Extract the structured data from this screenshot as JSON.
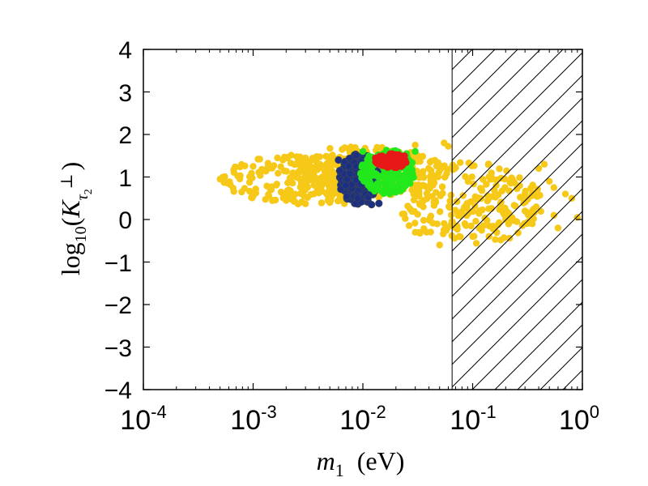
{
  "chart_data": {
    "type": "scatter",
    "title": "",
    "xlabel": "m_1 (eV)",
    "xlabel_main": "m",
    "xlabel_sub": "1",
    "xlabel_unit": "(eV)",
    "ylabel": "log10(K_{τ2⊥})",
    "ylabel_fn": "log",
    "ylabel_fn_sub": "10",
    "ylabel_var": "K",
    "ylabel_var_sub": "τ",
    "ylabel_var_subsub": "2",
    "ylabel_var_sup": "⊥",
    "xscale": "log",
    "xlim": [
      0.0001,
      1
    ],
    "ylim": [
      -4,
      4
    ],
    "x_ticks": [
      {
        "base": "10",
        "exp": "-4",
        "value": 0.0001
      },
      {
        "base": "10",
        "exp": "-3",
        "value": 0.001
      },
      {
        "base": "10",
        "exp": "-2",
        "value": 0.01
      },
      {
        "base": "10",
        "exp": "-1",
        "value": 0.1
      },
      {
        "base": "10",
        "exp": "0",
        "value": 1
      }
    ],
    "y_ticks": [
      "4",
      "3",
      "2",
      "1",
      "0",
      "−1",
      "−2",
      "−3",
      "−4"
    ],
    "y_tick_values": [
      4,
      3,
      2,
      1,
      0,
      -1,
      -2,
      -3,
      -4
    ],
    "excluded_region": {
      "x_min": 0.065,
      "x_max": 1,
      "style": "hatched"
    },
    "series": [
      {
        "name": "yellow",
        "color": "#f6c818",
        "regions": [
          {
            "x": [
              0.0005,
              0.03
            ],
            "y": [
              0.35,
              1.55
            ]
          },
          {
            "x": [
              0.002,
              0.06
            ],
            "y": [
              0.5,
              1.75
            ]
          },
          {
            "x": [
              0.02,
              0.45
            ],
            "y": [
              -0.6,
              1.35
            ]
          }
        ],
        "points": [
          {
            "x": 0.0005,
            "y": 0.95
          },
          {
            "x": 0.00055,
            "y": 1.0
          },
          {
            "x": 0.0006,
            "y": 0.85
          },
          {
            "x": 0.001,
            "y": 0.55
          },
          {
            "x": 0.002,
            "y": 0.45
          },
          {
            "x": 0.005,
            "y": 0.4
          },
          {
            "x": 0.001,
            "y": 1.25
          },
          {
            "x": 0.003,
            "y": 1.45
          },
          {
            "x": 0.008,
            "y": 1.6
          },
          {
            "x": 0.03,
            "y": 1.75
          },
          {
            "x": 0.055,
            "y": 1.8
          },
          {
            "x": 0.06,
            "y": 1.72
          },
          {
            "x": 0.03,
            "y": -0.3
          },
          {
            "x": 0.05,
            "y": -0.6
          },
          {
            "x": 0.1,
            "y": -0.4
          },
          {
            "x": 0.2,
            "y": 0.0
          },
          {
            "x": 0.3,
            "y": 0.6
          },
          {
            "x": 0.4,
            "y": 1.2
          },
          {
            "x": 0.45,
            "y": 1.3
          },
          {
            "x": 0.5,
            "y": 0.9
          },
          {
            "x": 0.55,
            "y": 0.1
          },
          {
            "x": 0.6,
            "y": -0.2
          },
          {
            "x": 0.55,
            "y": 0.75
          },
          {
            "x": 0.7,
            "y": 0.6
          },
          {
            "x": 0.8,
            "y": 0.5
          },
          {
            "x": 0.9,
            "y": 0.05
          },
          {
            "x": 0.35,
            "y": -0.1
          },
          {
            "x": 0.38,
            "y": 0.3
          }
        ]
      },
      {
        "name": "blue",
        "color": "#1c2f82",
        "regions": [
          {
            "x": [
              0.006,
              0.014
            ],
            "y": [
              0.35,
              1.55
            ]
          }
        ],
        "points": [
          {
            "x": 0.006,
            "y": 1.4
          },
          {
            "x": 0.007,
            "y": 0.8
          },
          {
            "x": 0.009,
            "y": 0.5
          },
          {
            "x": 0.012,
            "y": 0.35
          },
          {
            "x": 0.014,
            "y": 0.38
          },
          {
            "x": 0.011,
            "y": 1.5
          }
        ]
      },
      {
        "name": "green",
        "color": "#22e81c",
        "regions": [
          {
            "x": [
              0.0095,
              0.03
            ],
            "y": [
              0.6,
              1.65
            ]
          }
        ],
        "points": [
          {
            "x": 0.01,
            "y": 1.6
          },
          {
            "x": 0.013,
            "y": 0.7
          },
          {
            "x": 0.016,
            "y": 1.0
          },
          {
            "x": 0.025,
            "y": 1.55
          },
          {
            "x": 0.03,
            "y": 1.6
          }
        ]
      },
      {
        "name": "red",
        "color": "#e81818",
        "regions": [
          {
            "x": [
              0.013,
              0.025
            ],
            "y": [
              1.2,
              1.55
            ]
          }
        ],
        "points": [
          {
            "x": 0.013,
            "y": 1.45
          },
          {
            "x": 0.018,
            "y": 1.3
          },
          {
            "x": 0.024,
            "y": 1.5
          }
        ]
      }
    ]
  }
}
